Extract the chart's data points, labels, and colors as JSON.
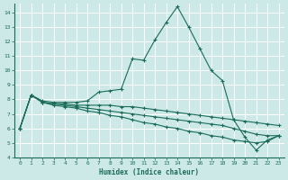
{
  "background_color": "#cce9e7",
  "grid_color": "#ffffff",
  "line_color": "#1a6b5a",
  "marker": "+",
  "xlabel": "Humidex (Indice chaleur)",
  "ylim": [
    4,
    14.6
  ],
  "xlim": [
    -0.5,
    23.5
  ],
  "yticks": [
    4,
    5,
    6,
    7,
    8,
    9,
    10,
    11,
    12,
    13,
    14
  ],
  "xticks": [
    0,
    1,
    2,
    3,
    4,
    5,
    6,
    7,
    8,
    9,
    10,
    11,
    12,
    13,
    14,
    15,
    16,
    17,
    18,
    19,
    20,
    21,
    22,
    23
  ],
  "lines": [
    {
      "x": [
        0,
        1,
        2,
        3,
        4,
        5,
        6,
        7,
        8,
        9,
        10,
        11,
        12,
        13,
        14,
        15,
        16,
        17,
        18,
        19,
        20,
        21,
        22,
        23
      ],
      "y": [
        6.0,
        8.3,
        7.9,
        7.8,
        7.8,
        7.8,
        7.9,
        8.5,
        8.6,
        8.7,
        10.8,
        10.7,
        12.1,
        13.3,
        14.4,
        13.0,
        11.5,
        10.0,
        9.3,
        6.6,
        5.4,
        4.5,
        5.2,
        5.5
      ]
    },
    {
      "x": [
        0,
        1,
        2,
        3,
        4,
        5,
        6,
        7,
        8,
        9,
        10,
        11,
        12,
        13,
        14,
        15,
        16,
        17,
        18,
        19,
        20,
        21,
        22,
        23
      ],
      "y": [
        6.0,
        8.3,
        7.8,
        7.7,
        7.7,
        7.6,
        7.6,
        7.6,
        7.6,
        7.5,
        7.5,
        7.4,
        7.3,
        7.2,
        7.1,
        7.0,
        6.9,
        6.8,
        6.7,
        6.6,
        6.5,
        6.4,
        6.3,
        6.2
      ]
    },
    {
      "x": [
        0,
        1,
        2,
        3,
        4,
        5,
        6,
        7,
        8,
        9,
        10,
        11,
        12,
        13,
        14,
        15,
        16,
        17,
        18,
        19,
        20,
        21,
        22,
        23
      ],
      "y": [
        6.0,
        8.3,
        7.8,
        7.7,
        7.6,
        7.5,
        7.4,
        7.3,
        7.2,
        7.1,
        7.0,
        6.9,
        6.8,
        6.7,
        6.6,
        6.5,
        6.4,
        6.3,
        6.2,
        6.0,
        5.8,
        5.6,
        5.5,
        5.5
      ]
    },
    {
      "x": [
        0,
        1,
        2,
        3,
        4,
        5,
        6,
        7,
        8,
        9,
        10,
        11,
        12,
        13,
        14,
        15,
        16,
        17,
        18,
        19,
        20,
        21,
        22,
        23
      ],
      "y": [
        6.0,
        8.3,
        7.8,
        7.6,
        7.5,
        7.4,
        7.2,
        7.1,
        6.9,
        6.8,
        6.6,
        6.4,
        6.3,
        6.1,
        6.0,
        5.8,
        5.7,
        5.5,
        5.4,
        5.2,
        5.1,
        5.0,
        5.1,
        5.5
      ]
    }
  ]
}
